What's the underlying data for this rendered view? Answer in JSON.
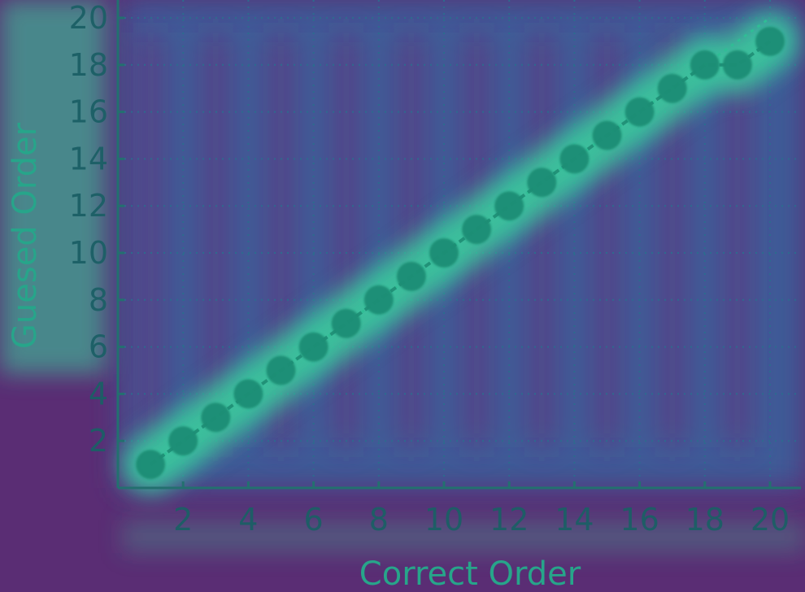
{
  "colors": {
    "background": "#5a2d74",
    "plot_background": "#3e5c98",
    "glow": "#3bd29e",
    "marker": "#1f8d74",
    "axis": "#23706f",
    "text": "#1c5f66",
    "grid": "#2b6e8e"
  },
  "chart_data": {
    "type": "line",
    "title": "",
    "xlabel": "Correct Order",
    "ylabel": "Guesed Order",
    "xlim": [
      0,
      21
    ],
    "ylim": [
      0,
      20.6
    ],
    "x_ticks": [
      2,
      4,
      6,
      8,
      10,
      12,
      14,
      16,
      18,
      20
    ],
    "y_ticks": [
      2,
      4,
      6,
      8,
      10,
      12,
      14,
      16,
      18,
      20
    ],
    "x_tick_labels": [
      "2",
      "4",
      "6",
      "8",
      "10",
      "12",
      "14",
      "16",
      "18",
      "20"
    ],
    "y_tick_labels": [
      "2",
      "4",
      "6",
      "8",
      "10",
      "12",
      "14",
      "16",
      "18",
      "20"
    ],
    "grid": true,
    "legend": "none",
    "series": [
      {
        "x": [
          1,
          2,
          3,
          4,
          5,
          6,
          7,
          8,
          9,
          10,
          11,
          12,
          13,
          14,
          15,
          16,
          17,
          18,
          19,
          20
        ],
        "values": [
          1,
          2,
          3,
          4,
          5,
          6,
          7,
          8,
          9,
          10,
          11,
          12,
          13,
          14,
          15,
          16,
          17,
          18,
          18,
          19
        ],
        "marker": "circle"
      },
      {
        "x": [
          1,
          20
        ],
        "values": [
          1,
          20
        ],
        "style": "diagonal reference line"
      }
    ]
  }
}
